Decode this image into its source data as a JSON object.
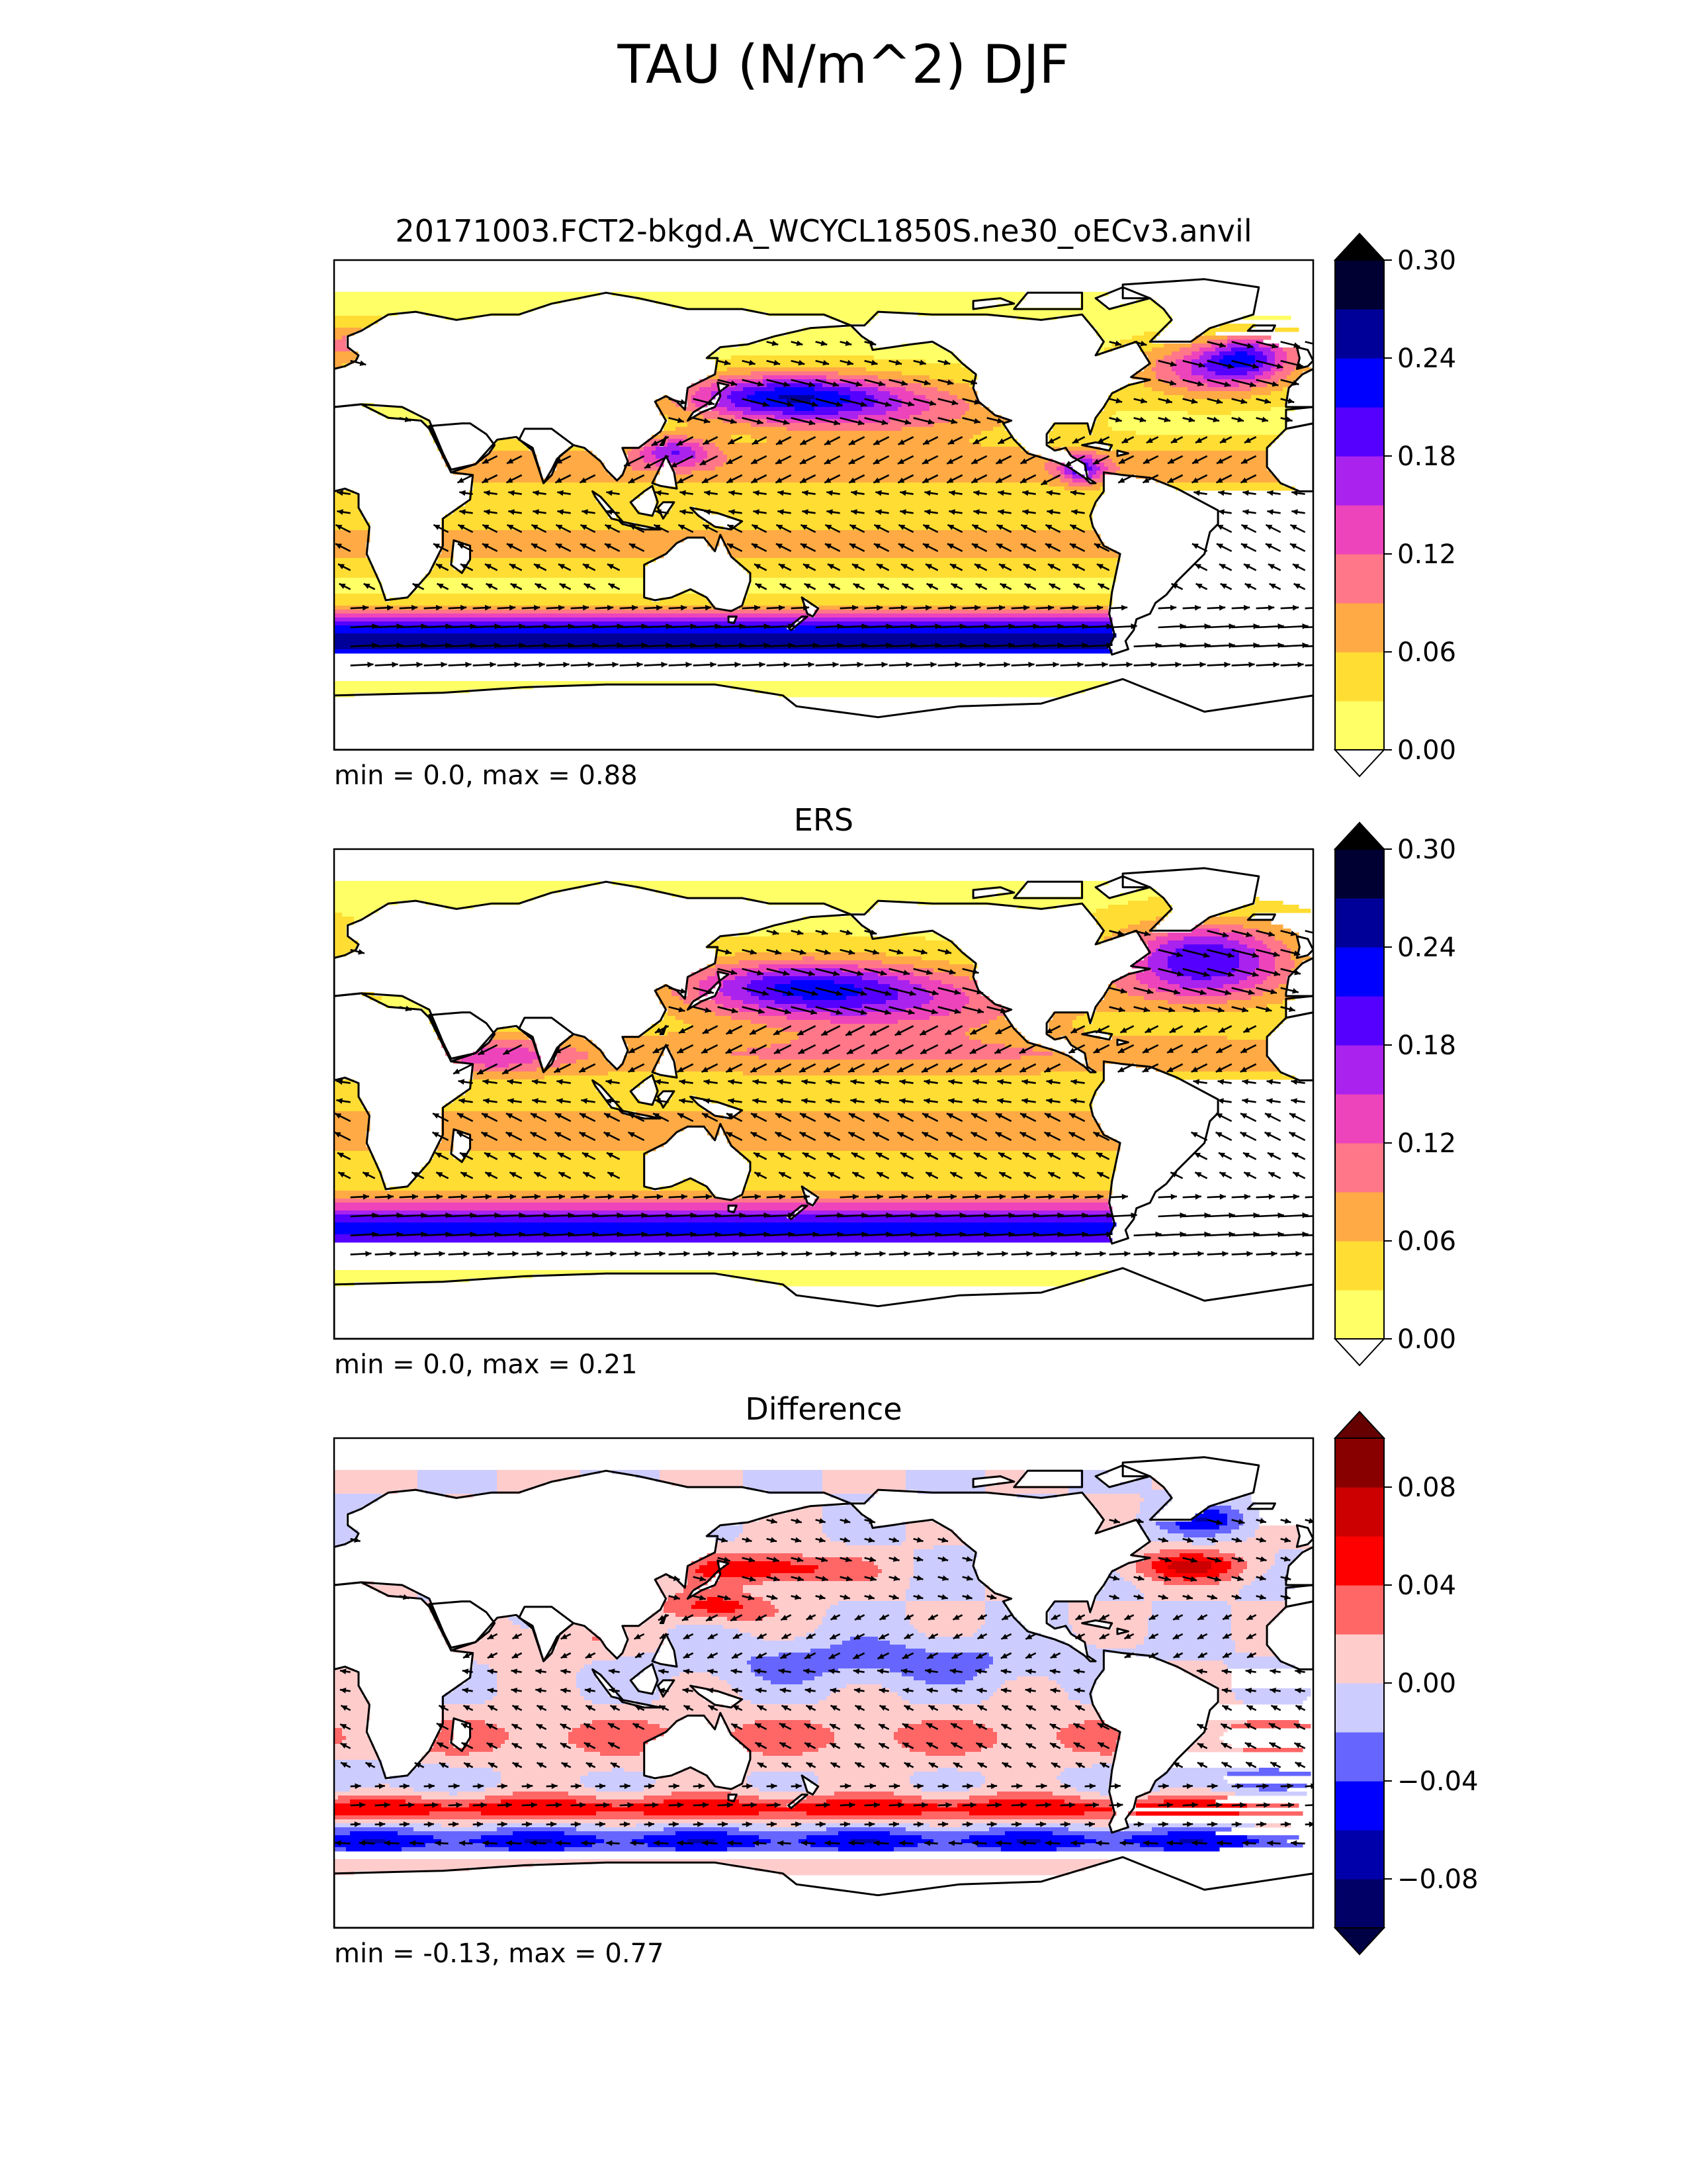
{
  "figure": {
    "title": "TAU (N/m^2) DJF"
  },
  "chart_data": [
    {
      "type": "heatmap",
      "title": "20171003.FCT2-bkgd.A_WCYCL1850S.ne30_oECv3.anvil",
      "xlabel": "",
      "ylabel": "",
      "stats_label": "min = 0.0, max = 0.88",
      "stats": {
        "min": 0.0,
        "max": 0.88
      },
      "colorbar": {
        "levels": [
          0.0,
          0.03,
          0.06,
          0.09,
          0.12,
          0.15,
          0.18,
          0.21,
          0.24,
          0.27,
          0.3
        ],
        "ticks": [
          "0.00",
          "0.06",
          "0.12",
          "0.18",
          "0.24",
          "0.30"
        ],
        "colors": [
          "#ffff66",
          "#ffdd33",
          "#ffaa44",
          "#ff7788",
          "#ee44bb",
          "#aa22ee",
          "#5500ff",
          "#0000ff",
          "#000099",
          "#000033"
        ],
        "under_color": "#ffffff",
        "over_color": "#000000"
      },
      "field": {
        "southern_band": 0.2,
        "north_pacific": 0.17,
        "north_atlantic": 0.14,
        "trades": 0.06
      }
    },
    {
      "type": "heatmap",
      "title": "ERS",
      "xlabel": "",
      "ylabel": "",
      "stats_label": "min = 0.0, max = 0.21",
      "stats": {
        "min": 0.0,
        "max": 0.21
      },
      "colorbar": {
        "levels": [
          0.0,
          0.03,
          0.06,
          0.09,
          0.12,
          0.15,
          0.18,
          0.21,
          0.24,
          0.27,
          0.3
        ],
        "ticks": [
          "0.00",
          "0.06",
          "0.12",
          "0.18",
          "0.24",
          "0.30"
        ],
        "colors": [
          "#ffff66",
          "#ffdd33",
          "#ffaa44",
          "#ff7788",
          "#ee44bb",
          "#aa22ee",
          "#5500ff",
          "#0000ff",
          "#000099",
          "#000033"
        ],
        "under_color": "#ffffff",
        "over_color": "#000000"
      },
      "field": {
        "southern_band": 0.15,
        "north_pacific": 0.14,
        "north_atlantic": 0.16,
        "trades": 0.06
      }
    },
    {
      "type": "heatmap",
      "title": "Difference",
      "xlabel": "",
      "ylabel": "",
      "stats_label": "min = -0.13, max = 0.77",
      "stats": {
        "min": -0.13,
        "max": 0.77
      },
      "colorbar": {
        "levels": [
          -0.1,
          -0.08,
          -0.06,
          -0.04,
          -0.02,
          0.0,
          0.02,
          0.04,
          0.06,
          0.08,
          0.1
        ],
        "ticks": [
          "−0.08",
          "−0.04",
          "0.00",
          "0.04",
          "0.08"
        ],
        "colors": [
          "#000066",
          "#0000aa",
          "#0000ff",
          "#6666ff",
          "#ccccff",
          "#ffcccc",
          "#ff6666",
          "#ff0000",
          "#cc0000",
          "#880000"
        ],
        "under_color": "#000044",
        "over_color": "#660000"
      },
      "field": {
        "southern_band": 0.05,
        "antarctic_band": -0.05,
        "north_pacific": 0.06,
        "north_atlantic": -0.05
      }
    }
  ]
}
